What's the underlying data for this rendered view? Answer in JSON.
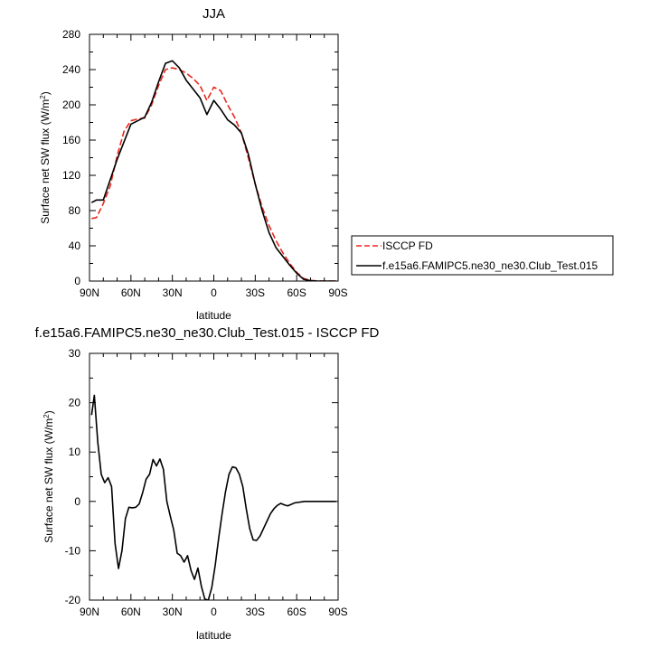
{
  "chart_data": [
    {
      "type": "line",
      "title": "JJA",
      "xlabel": "latitude",
      "ylabel": "Surface net SW flux",
      "ylabel_unit_base": "W/m",
      "ylabel_unit_exp": "2",
      "xlim": [
        90,
        -90
      ],
      "ylim": [
        0,
        280
      ],
      "x_ticks": [
        90,
        60,
        30,
        0,
        -30,
        -60,
        -90
      ],
      "x_tick_labels": [
        "90N",
        "60N",
        "30N",
        "0",
        "30S",
        "60S",
        "90S"
      ],
      "y_ticks": [
        0,
        40,
        80,
        120,
        160,
        200,
        240,
        280
      ],
      "y_tick_labels": [
        "0",
        "40",
        "80",
        "120",
        "160",
        "200",
        "240",
        "280"
      ],
      "grid": false,
      "legend_position": "outside-right",
      "series": [
        {
          "name": "ISCCP FD",
          "color": "#e8281e",
          "style": "dashed",
          "x": [
            88.5,
            85,
            80,
            75,
            70,
            65,
            60,
            55,
            50,
            45,
            40,
            35,
            30,
            25,
            20,
            15,
            10,
            5,
            0,
            -5,
            -10,
            -15,
            -20,
            -25,
            -30,
            -35,
            -40,
            -45,
            -50,
            -55,
            -60,
            -65,
            -70,
            -75,
            -80,
            -85,
            -88.5
          ],
          "y": [
            71,
            72,
            88,
            108,
            142,
            170,
            182,
            184,
            185,
            200,
            222,
            240,
            242,
            240,
            236,
            230,
            222,
            205,
            220,
            216,
            200,
            186,
            168,
            140,
            110,
            84,
            63,
            46,
            32,
            20,
            10,
            3,
            0.8,
            0.2,
            0,
            0,
            0
          ]
        },
        {
          "name": "f.e15a6.FAMIPC5.ne30_ne30.Club_Test.015",
          "color": "#000000",
          "style": "solid",
          "x": [
            88.5,
            85,
            80,
            75,
            70,
            65,
            60,
            55,
            50,
            45,
            40,
            35,
            30,
            25,
            20,
            15,
            10,
            5,
            0,
            -5,
            -10,
            -15,
            -20,
            -25,
            -30,
            -35,
            -40,
            -45,
            -50,
            -55,
            -60,
            -65,
            -70,
            -75,
            -80,
            -85,
            -88.5
          ],
          "y": [
            89,
            92,
            92,
            115,
            138,
            158,
            178,
            182,
            186,
            203,
            226,
            247,
            250,
            242,
            228,
            218,
            208,
            189,
            205,
            195,
            183,
            177,
            168,
            144,
            110,
            80,
            55,
            38,
            28,
            18,
            9,
            2,
            0.5,
            0,
            0,
            0,
            0
          ]
        }
      ]
    },
    {
      "type": "line",
      "title": "f.e15a6.FAMIPC5.ne30_ne30.Club_Test.015 - ISCCP FD",
      "xlabel": "latitude",
      "ylabel": "Surface net SW flux",
      "ylabel_unit_base": "W/m",
      "ylabel_unit_exp": "2",
      "xlim": [
        90,
        -90
      ],
      "ylim": [
        -20,
        30
      ],
      "x_ticks": [
        90,
        60,
        30,
        0,
        -30,
        -60,
        -90
      ],
      "x_tick_labels": [
        "90N",
        "60N",
        "30N",
        "0",
        "30S",
        "60S",
        "90S"
      ],
      "y_ticks": [
        -20,
        -10,
        0,
        10,
        20,
        30
      ],
      "y_tick_labels": [
        "-20",
        "-10",
        "0",
        "10",
        "20",
        "30"
      ],
      "grid": false,
      "series": [
        {
          "color": "#000000",
          "style": "solid",
          "x": [
            88.5,
            86.5,
            84,
            81.5,
            79,
            76.5,
            74,
            71.5,
            69,
            66.5,
            64,
            61.5,
            59,
            56.5,
            54,
            51.5,
            49,
            46.5,
            44,
            41.5,
            39,
            36.5,
            34,
            31.5,
            29,
            26.5,
            24,
            21.5,
            19,
            16.5,
            14,
            11.5,
            9,
            6.5,
            4,
            1.5,
            -1,
            -3.5,
            -6,
            -8.5,
            -11,
            -13.5,
            -16,
            -18.5,
            -21,
            -23.5,
            -26,
            -28.5,
            -31,
            -33.5,
            -36,
            -38.5,
            -41,
            -43.5,
            -46,
            -48.5,
            -51,
            -53.5,
            -56,
            -58.5,
            -61,
            -63.5,
            -66,
            -68.5,
            -71,
            -73.5,
            -76,
            -78.5,
            -81,
            -83.5,
            -86,
            -88.5
          ],
          "y": [
            17.5,
            21.5,
            12,
            5.5,
            3.8,
            4.8,
            3,
            -8.5,
            -13.6,
            -10,
            -3.5,
            -1.2,
            -1.3,
            -1.2,
            -0.5,
            1.8,
            4.5,
            5.5,
            8.5,
            7.2,
            8.6,
            6.5,
            0,
            -3,
            -5.8,
            -10.5,
            -11,
            -12.3,
            -11,
            -14,
            -15.8,
            -13.5,
            -17.2,
            -19.8,
            -20,
            -17.5,
            -13,
            -7.5,
            -2.5,
            2,
            5.5,
            7,
            6.8,
            5.5,
            3,
            -1.5,
            -5.5,
            -7.8,
            -7.9,
            -7,
            -5.5,
            -4,
            -2.5,
            -1.5,
            -0.8,
            -0.4,
            -0.7,
            -0.9,
            -0.6,
            -0.3,
            -0.2,
            -0.1,
            0,
            0,
            0,
            0,
            0,
            0,
            0,
            0,
            0,
            0
          ]
        }
      ]
    }
  ]
}
